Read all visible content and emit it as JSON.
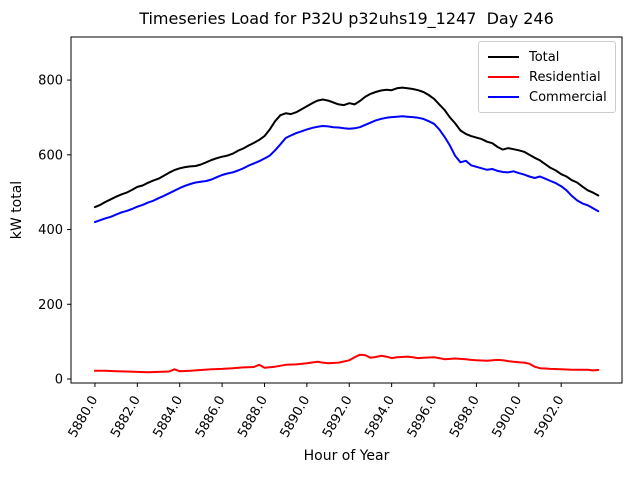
{
  "chart_data": {
    "type": "line",
    "title": "Timeseries Load for P32U p32uhs19_1247  Day 246",
    "xlabel": "Hour of Year",
    "ylabel": "kW total",
    "xlim": [
      5878.87,
      5904.87
    ],
    "ylim": [
      -10.7,
      915.3
    ],
    "xticks": [
      5880,
      5882,
      5884,
      5886,
      5888,
      5890,
      5892,
      5894,
      5896,
      5898,
      5900,
      5902
    ],
    "xtick_labels": [
      "5880.0",
      "5882.0",
      "5884.0",
      "5886.0",
      "5888.0",
      "5890.0",
      "5892.0",
      "5894.0",
      "5896.0",
      "5898.0",
      "5900.0",
      "5902.0"
    ],
    "yticks": [
      0,
      200,
      400,
      600,
      800
    ],
    "ytick_labels": [
      "0",
      "200",
      "400",
      "600",
      "800"
    ],
    "grid": false,
    "legend_position": "upper right",
    "xtick_rotation_deg": 60,
    "series": [
      {
        "name": "Total",
        "color": "#000000",
        "points": [
          [
            5880,
            460
          ],
          [
            5880.25,
            466
          ],
          [
            5880.5,
            474
          ],
          [
            5880.75,
            481
          ],
          [
            5881,
            488
          ],
          [
            5881.25,
            494
          ],
          [
            5881.5,
            499
          ],
          [
            5881.75,
            506
          ],
          [
            5882,
            514
          ],
          [
            5882.25,
            518
          ],
          [
            5882.5,
            525
          ],
          [
            5882.75,
            531
          ],
          [
            5883,
            536
          ],
          [
            5883.25,
            544
          ],
          [
            5883.5,
            552
          ],
          [
            5883.75,
            559
          ],
          [
            5884,
            564
          ],
          [
            5884.25,
            567
          ],
          [
            5884.5,
            569
          ],
          [
            5884.75,
            570
          ],
          [
            5885,
            574
          ],
          [
            5885.25,
            580
          ],
          [
            5885.5,
            586
          ],
          [
            5885.75,
            591
          ],
          [
            5886,
            595
          ],
          [
            5886.25,
            598
          ],
          [
            5886.5,
            603
          ],
          [
            5886.75,
            611
          ],
          [
            5887,
            617
          ],
          [
            5887.25,
            625
          ],
          [
            5887.5,
            632
          ],
          [
            5887.75,
            640
          ],
          [
            5888,
            650
          ],
          [
            5888.25,
            668
          ],
          [
            5888.5,
            690
          ],
          [
            5888.75,
            706
          ],
          [
            5889,
            711
          ],
          [
            5889.25,
            709
          ],
          [
            5889.5,
            714
          ],
          [
            5889.75,
            722
          ],
          [
            5890,
            730
          ],
          [
            5890.25,
            738
          ],
          [
            5890.5,
            745
          ],
          [
            5890.75,
            748
          ],
          [
            5891,
            745
          ],
          [
            5891.25,
            740
          ],
          [
            5891.5,
            735
          ],
          [
            5891.75,
            733
          ],
          [
            5892,
            738
          ],
          [
            5892.25,
            735
          ],
          [
            5892.5,
            744
          ],
          [
            5892.75,
            755
          ],
          [
            5893,
            763
          ],
          [
            5893.25,
            768
          ],
          [
            5893.5,
            772
          ],
          [
            5893.75,
            774
          ],
          [
            5894,
            773
          ],
          [
            5894.25,
            778
          ],
          [
            5894.5,
            780
          ],
          [
            5894.75,
            778
          ],
          [
            5895,
            776
          ],
          [
            5895.25,
            773
          ],
          [
            5895.5,
            768
          ],
          [
            5895.75,
            760
          ],
          [
            5896,
            750
          ],
          [
            5896.25,
            735
          ],
          [
            5896.5,
            720
          ],
          [
            5896.75,
            700
          ],
          [
            5897,
            684
          ],
          [
            5897.25,
            665
          ],
          [
            5897.5,
            656
          ],
          [
            5897.75,
            650
          ],
          [
            5898,
            646
          ],
          [
            5898.25,
            642
          ],
          [
            5898.5,
            635
          ],
          [
            5898.75,
            631
          ],
          [
            5899,
            621
          ],
          [
            5899.25,
            614
          ],
          [
            5899.5,
            618
          ],
          [
            5899.75,
            615
          ],
          [
            5900,
            612
          ],
          [
            5900.25,
            608
          ],
          [
            5900.5,
            600
          ],
          [
            5900.75,
            592
          ],
          [
            5901,
            585
          ],
          [
            5901.25,
            575
          ],
          [
            5901.5,
            565
          ],
          [
            5901.75,
            558
          ],
          [
            5902,
            548
          ],
          [
            5902.25,
            542
          ],
          [
            5902.5,
            532
          ],
          [
            5902.75,
            526
          ],
          [
            5903,
            515
          ],
          [
            5903.25,
            505
          ],
          [
            5903.5,
            499
          ],
          [
            5903.75,
            491
          ]
        ]
      },
      {
        "name": "Residential",
        "color": "#ff0000",
        "points": [
          [
            5880,
            22
          ],
          [
            5880.5,
            22
          ],
          [
            5881,
            21
          ],
          [
            5881.5,
            20
          ],
          [
            5882,
            19
          ],
          [
            5882.5,
            18
          ],
          [
            5883,
            19
          ],
          [
            5883.5,
            20
          ],
          [
            5883.75,
            26
          ],
          [
            5884,
            21
          ],
          [
            5884.5,
            22
          ],
          [
            5885,
            24
          ],
          [
            5885.5,
            26
          ],
          [
            5886,
            27
          ],
          [
            5886.5,
            29
          ],
          [
            5887,
            31
          ],
          [
            5887.5,
            32
          ],
          [
            5887.75,
            38
          ],
          [
            5888,
            30
          ],
          [
            5888.5,
            33
          ],
          [
            5889,
            38
          ],
          [
            5889.5,
            39
          ],
          [
            5890,
            42
          ],
          [
            5890.5,
            46
          ],
          [
            5890.75,
            44
          ],
          [
            5891,
            42
          ],
          [
            5891.5,
            44
          ],
          [
            5892,
            50
          ],
          [
            5892.25,
            58
          ],
          [
            5892.5,
            65
          ],
          [
            5892.75,
            64
          ],
          [
            5893,
            57
          ],
          [
            5893.25,
            59
          ],
          [
            5893.5,
            62
          ],
          [
            5893.75,
            60
          ],
          [
            5894,
            56
          ],
          [
            5894.25,
            58
          ],
          [
            5894.5,
            59
          ],
          [
            5894.75,
            60
          ],
          [
            5895,
            58
          ],
          [
            5895.25,
            56
          ],
          [
            5895.5,
            57
          ],
          [
            5896,
            58
          ],
          [
            5896.25,
            56
          ],
          [
            5896.5,
            53
          ],
          [
            5897,
            55
          ],
          [
            5897.5,
            53
          ],
          [
            5897.75,
            51
          ],
          [
            5898,
            50
          ],
          [
            5898.5,
            49
          ],
          [
            5899,
            51
          ],
          [
            5899.25,
            50
          ],
          [
            5899.5,
            48
          ],
          [
            5899.75,
            46
          ],
          [
            5900,
            45
          ],
          [
            5900.25,
            44
          ],
          [
            5900.5,
            41
          ],
          [
            5900.75,
            33
          ],
          [
            5901,
            29
          ],
          [
            5901.25,
            28
          ],
          [
            5901.5,
            27
          ],
          [
            5902,
            26
          ],
          [
            5902.5,
            25
          ],
          [
            5903,
            25
          ],
          [
            5903.25,
            25
          ],
          [
            5903.5,
            23
          ],
          [
            5903.75,
            24
          ]
        ]
      },
      {
        "name": "Commercial",
        "color": "#0000ff",
        "points": [
          [
            5880,
            420
          ],
          [
            5880.25,
            425
          ],
          [
            5880.5,
            430
          ],
          [
            5880.75,
            434
          ],
          [
            5881,
            440
          ],
          [
            5881.25,
            446
          ],
          [
            5881.5,
            450
          ],
          [
            5881.75,
            455
          ],
          [
            5882,
            461
          ],
          [
            5882.25,
            466
          ],
          [
            5882.5,
            472
          ],
          [
            5882.75,
            477
          ],
          [
            5883,
            484
          ],
          [
            5883.25,
            490
          ],
          [
            5883.5,
            497
          ],
          [
            5883.75,
            504
          ],
          [
            5884,
            511
          ],
          [
            5884.25,
            517
          ],
          [
            5884.5,
            522
          ],
          [
            5884.75,
            526
          ],
          [
            5885,
            528
          ],
          [
            5885.25,
            530
          ],
          [
            5885.5,
            534
          ],
          [
            5885.75,
            540
          ],
          [
            5886,
            546
          ],
          [
            5886.25,
            550
          ],
          [
            5886.5,
            553
          ],
          [
            5886.75,
            558
          ],
          [
            5887,
            564
          ],
          [
            5887.25,
            571
          ],
          [
            5887.5,
            577
          ],
          [
            5887.75,
            583
          ],
          [
            5888,
            590
          ],
          [
            5888.25,
            598
          ],
          [
            5888.5,
            612
          ],
          [
            5888.75,
            628
          ],
          [
            5889,
            645
          ],
          [
            5889.25,
            652
          ],
          [
            5889.5,
            658
          ],
          [
            5889.75,
            663
          ],
          [
            5890,
            668
          ],
          [
            5890.25,
            672
          ],
          [
            5890.5,
            675
          ],
          [
            5890.75,
            677
          ],
          [
            5891,
            676
          ],
          [
            5891.25,
            674
          ],
          [
            5891.5,
            673
          ],
          [
            5891.75,
            671
          ],
          [
            5892,
            670
          ],
          [
            5892.25,
            671
          ],
          [
            5892.5,
            674
          ],
          [
            5892.75,
            680
          ],
          [
            5893,
            686
          ],
          [
            5893.25,
            692
          ],
          [
            5893.5,
            696
          ],
          [
            5893.75,
            699
          ],
          [
            5894,
            701
          ],
          [
            5894.25,
            702
          ],
          [
            5894.5,
            703
          ],
          [
            5894.75,
            702
          ],
          [
            5895,
            701
          ],
          [
            5895.25,
            699
          ],
          [
            5895.5,
            696
          ],
          [
            5895.75,
            690
          ],
          [
            5896,
            683
          ],
          [
            5896.25,
            668
          ],
          [
            5896.5,
            648
          ],
          [
            5896.75,
            625
          ],
          [
            5897,
            597
          ],
          [
            5897.25,
            580
          ],
          [
            5897.5,
            584
          ],
          [
            5897.75,
            572
          ],
          [
            5898,
            568
          ],
          [
            5898.25,
            564
          ],
          [
            5898.5,
            560
          ],
          [
            5898.75,
            562
          ],
          [
            5899,
            557
          ],
          [
            5899.25,
            554
          ],
          [
            5899.5,
            553
          ],
          [
            5899.75,
            556
          ],
          [
            5900,
            551
          ],
          [
            5900.25,
            547
          ],
          [
            5900.5,
            542
          ],
          [
            5900.75,
            538
          ],
          [
            5901,
            542
          ],
          [
            5901.25,
            536
          ],
          [
            5901.5,
            530
          ],
          [
            5901.75,
            524
          ],
          [
            5902,
            516
          ],
          [
            5902.25,
            505
          ],
          [
            5902.5,
            490
          ],
          [
            5902.75,
            478
          ],
          [
            5903,
            470
          ],
          [
            5903.25,
            465
          ],
          [
            5903.5,
            457
          ],
          [
            5903.75,
            449
          ]
        ]
      }
    ]
  }
}
